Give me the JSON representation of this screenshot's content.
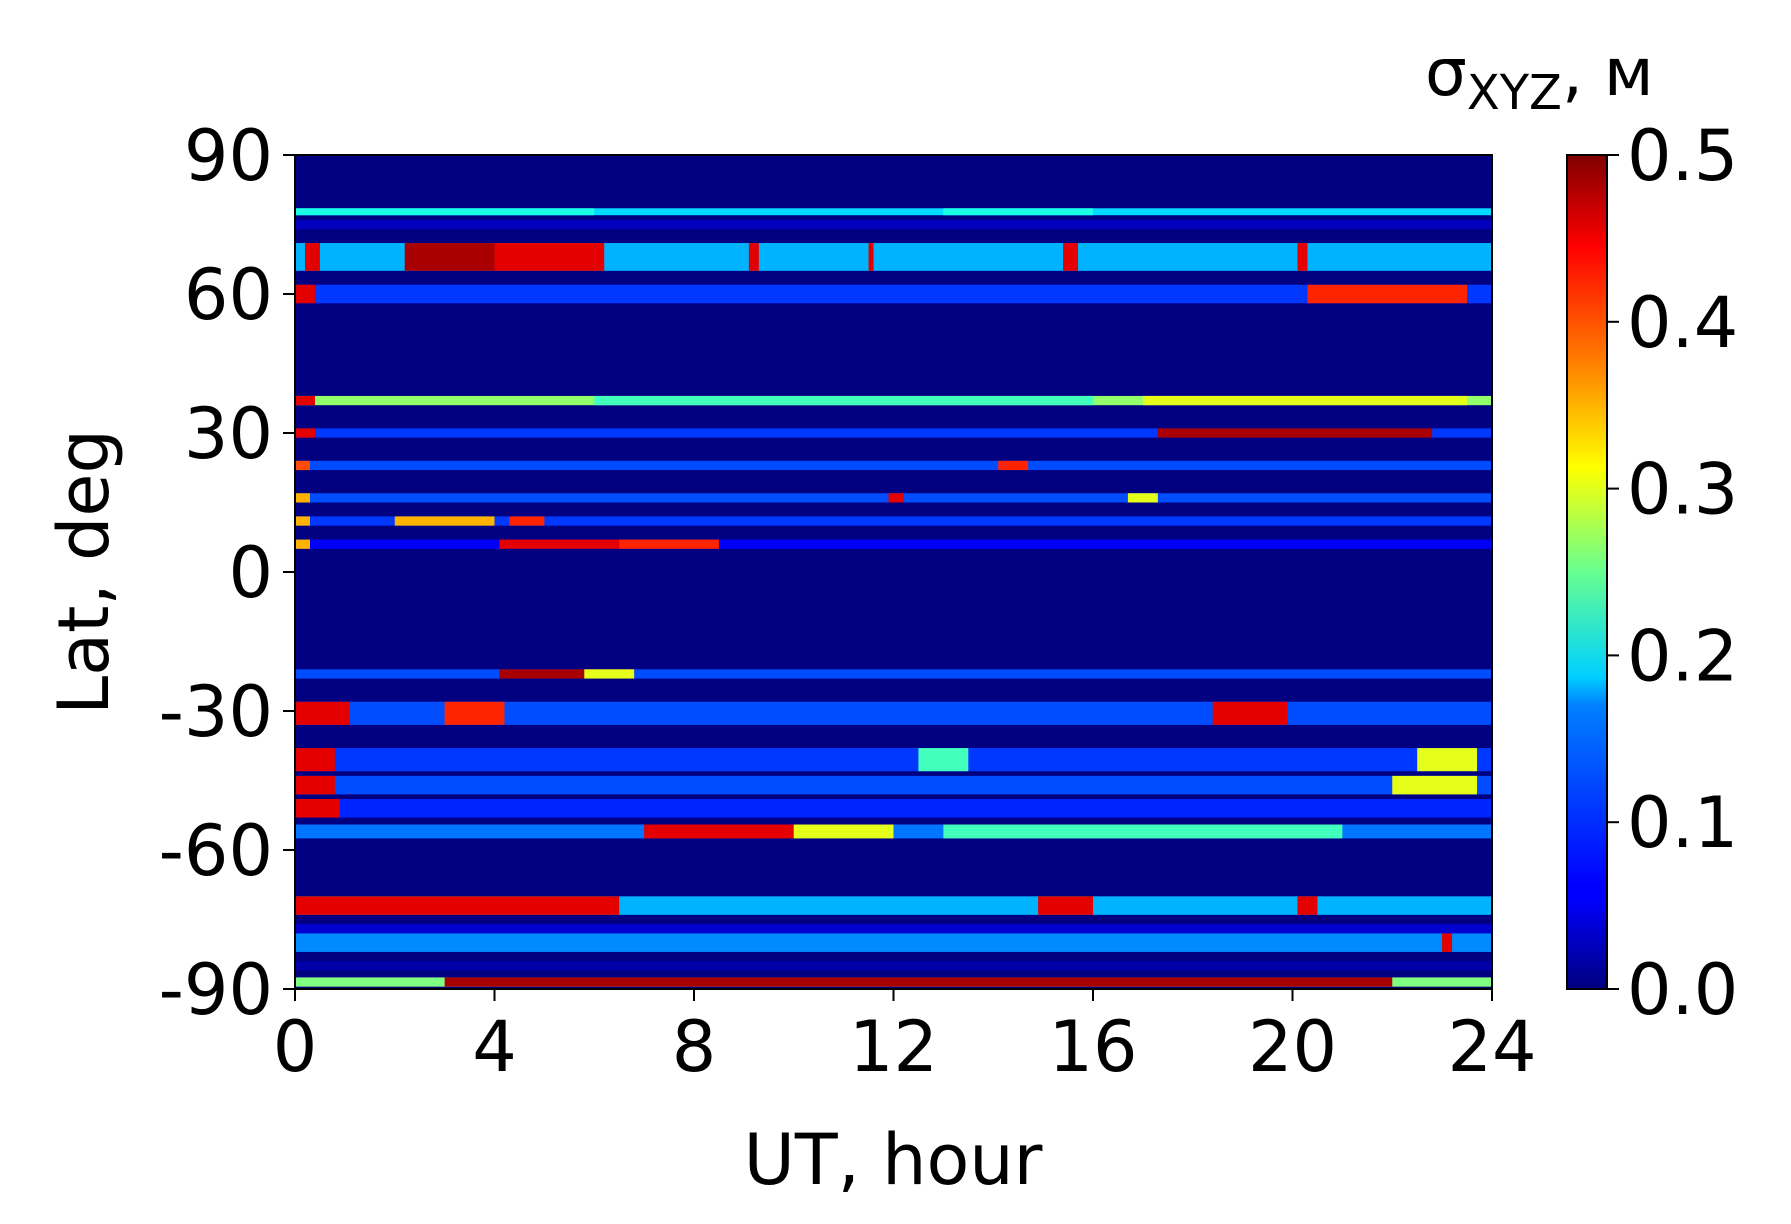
{
  "chart_data": {
    "type": "heatmap",
    "xlabel": "UT, hour",
    "ylabel": "Lat, deg",
    "colorbar_label": "σ",
    "colorbar_label_sub": "XYZ",
    "colorbar_label_unit": ", м",
    "xlim": [
      0,
      24
    ],
    "ylim": [
      -90,
      90
    ],
    "x_ticks": [
      "0",
      "4",
      "8",
      "12",
      "16",
      "20",
      "24"
    ],
    "y_ticks": [
      "90",
      "60",
      "30",
      "0",
      "-30",
      "-60",
      "-90"
    ],
    "x_tick_values": [
      0,
      4,
      8,
      12,
      16,
      20,
      24
    ],
    "y_tick_values": [
      90,
      60,
      30,
      0,
      -30,
      -60,
      -90
    ],
    "color_range": [
      0.0,
      0.5
    ],
    "colorbar_ticks": [
      "0.0",
      "0.1",
      "0.2",
      "0.3",
      "0.4",
      "0.5"
    ],
    "colorbar_tick_values": [
      0.0,
      0.1,
      0.2,
      0.3,
      0.4,
      0.5
    ],
    "colormap": "jet",
    "grid": false,
    "legend": "colorbar-right",
    "background_value": 0.0,
    "bands": [
      {
        "lat": [
          77,
          78.5
        ],
        "base": 0.17,
        "events": [
          [
            0,
            6,
            0.2
          ],
          [
            13,
            16,
            0.2
          ]
        ]
      },
      {
        "lat": [
          74,
          76
        ],
        "base": 0.03
      },
      {
        "lat": [
          65,
          71
        ],
        "base": 0.15,
        "events": [
          [
            0.2,
            0.5,
            0.45
          ],
          [
            2.2,
            4.0,
            0.48
          ],
          [
            4.0,
            6.2,
            0.45
          ],
          [
            9.1,
            9.3,
            0.45
          ],
          [
            11.5,
            11.6,
            0.45
          ],
          [
            15.4,
            15.7,
            0.45
          ],
          [
            20.1,
            20.3,
            0.45
          ]
        ]
      },
      {
        "lat": [
          58,
          62
        ],
        "base": 0.09,
        "events": [
          [
            0,
            0.4,
            0.45
          ],
          [
            20.3,
            23.5,
            0.42
          ]
        ]
      },
      {
        "lat": [
          36,
          38
        ],
        "base": 0.26,
        "events": [
          [
            0,
            0.4,
            0.45
          ],
          [
            6,
            16,
            0.22
          ],
          [
            17,
            23.5,
            0.3
          ]
        ]
      },
      {
        "lat": [
          29,
          31
        ],
        "base": 0.09,
        "events": [
          [
            0,
            0.4,
            0.45
          ],
          [
            17.3,
            22.8,
            0.48
          ]
        ]
      },
      {
        "lat": [
          22,
          24
        ],
        "base": 0.1,
        "events": [
          [
            0,
            0.3,
            0.4
          ],
          [
            14.1,
            14.7,
            0.42
          ]
        ]
      },
      {
        "lat": [
          15,
          17
        ],
        "base": 0.1,
        "events": [
          [
            0,
            0.3,
            0.35
          ],
          [
            11.9,
            12.2,
            0.45
          ],
          [
            16.7,
            17.3,
            0.3
          ]
        ]
      },
      {
        "lat": [
          10,
          12
        ],
        "base": 0.09,
        "events": [
          [
            0,
            0.3,
            0.35
          ],
          [
            2,
            4,
            0.35
          ],
          [
            4.3,
            5,
            0.42
          ]
        ]
      },
      {
        "lat": [
          5,
          7
        ],
        "base": 0.06,
        "events": [
          [
            0,
            0.3,
            0.35
          ],
          [
            4.1,
            6.5,
            0.45
          ],
          [
            6.5,
            8.5,
            0.42
          ]
        ]
      },
      {
        "lat": [
          -23,
          -21
        ],
        "base": 0.1,
        "events": [
          [
            4.1,
            6.8,
            0.48
          ],
          [
            5.8,
            6.8,
            0.3
          ]
        ]
      },
      {
        "lat": [
          -33,
          -28
        ],
        "base": 0.1,
        "events": [
          [
            0,
            1.1,
            0.45
          ],
          [
            3,
            4.2,
            0.42
          ],
          [
            18.4,
            19.9,
            0.45
          ]
        ]
      },
      {
        "lat": [
          -43,
          -38
        ],
        "base": 0.09,
        "events": [
          [
            0,
            0.8,
            0.45
          ],
          [
            12.5,
            13.5,
            0.22
          ],
          [
            22.5,
            23.7,
            0.3
          ]
        ]
      },
      {
        "lat": [
          -48,
          -44
        ],
        "base": 0.1,
        "events": [
          [
            0,
            0.8,
            0.45
          ],
          [
            22,
            23.7,
            0.3
          ]
        ]
      },
      {
        "lat": [
          -53,
          -49
        ],
        "base": 0.08,
        "events": [
          [
            0,
            0.9,
            0.45
          ]
        ]
      },
      {
        "lat": [
          -57.5,
          -54.5
        ],
        "base": 0.12,
        "events": [
          [
            7,
            10,
            0.45
          ],
          [
            10,
            12,
            0.3
          ],
          [
            13,
            21,
            0.22
          ]
        ]
      },
      {
        "lat": [
          -74,
          -70
        ],
        "base": 0.15,
        "events": [
          [
            0,
            6.5,
            0.45
          ],
          [
            14.9,
            16,
            0.45
          ],
          [
            20.1,
            20.5,
            0.45
          ]
        ]
      },
      {
        "lat": [
          -78,
          -76
        ],
        "base": 0.04
      },
      {
        "lat": [
          -82,
          -78
        ],
        "base": 0.13,
        "events": [
          [
            23,
            23.2,
            0.45
          ]
        ]
      },
      {
        "lat": [
          -86,
          -84
        ],
        "base": 0.02
      },
      {
        "lat": [
          -89.5,
          -87.5
        ],
        "base": 0.25,
        "events": [
          [
            3,
            22,
            0.48
          ]
        ]
      }
    ]
  }
}
